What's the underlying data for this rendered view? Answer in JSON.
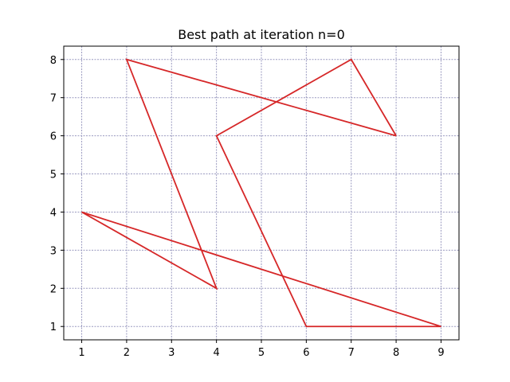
{
  "colors": {
    "path": "#d62728",
    "grid": "#9a9ac0",
    "axis": "#000000"
  },
  "chart_data": {
    "type": "line",
    "title": "Best path at iteration n=0",
    "xlabel": "",
    "ylabel": "",
    "xlim": [
      0.6,
      9.4
    ],
    "ylim": [
      0.65,
      8.35
    ],
    "x_ticks": [
      1,
      2,
      3,
      4,
      5,
      6,
      7,
      8,
      9
    ],
    "y_ticks": [
      1,
      2,
      3,
      4,
      5,
      6,
      7,
      8
    ],
    "grid": true,
    "series": [
      {
        "x": [
          8,
          2,
          4,
          1,
          9,
          6,
          4,
          7,
          8
        ],
        "y": [
          6,
          8,
          2,
          4,
          1,
          1,
          6,
          8,
          6
        ]
      }
    ]
  }
}
